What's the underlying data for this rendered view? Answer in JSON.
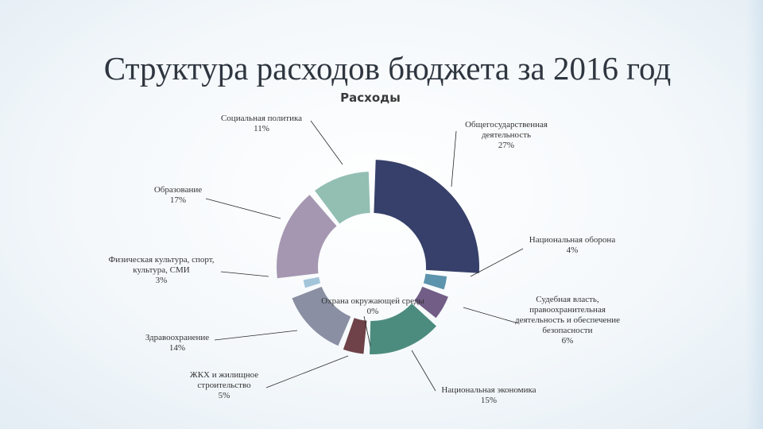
{
  "title": "Структура расходов бюджета за 2016 год",
  "chart_data": {
    "type": "donut",
    "title": "Расходы",
    "series": [
      {
        "label": "Общегосударственная деятельность",
        "value": 27,
        "value_label": "27%",
        "color": "#36406a"
      },
      {
        "label": "Национальная оборона",
        "value": 4,
        "value_label": "4%",
        "color": "#5c93ad"
      },
      {
        "label": "Судебная власть, правоохранительная деятельность и обеспечение безопасности",
        "value": 6,
        "value_label": "6%",
        "color": "#725d86"
      },
      {
        "label": "Национальная экономика",
        "value": 15,
        "value_label": "15%",
        "color": "#4c8c7e"
      },
      {
        "label": "Охрана окружающей среды",
        "value": 0,
        "value_label": "0%",
        "color": "#3e586e"
      },
      {
        "label": "ЖКХ и жилищное строительство",
        "value": 5,
        "value_label": "5%",
        "color": "#6e4248"
      },
      {
        "label": "Здравоохранение",
        "value": 14,
        "value_label": "14%",
        "color": "#8a8fa3"
      },
      {
        "label": "Физическая культура, спорт, культура, СМИ",
        "value": 3,
        "value_label": "3%",
        "color": "#a3c5da"
      },
      {
        "label": "Образование",
        "value": 17,
        "value_label": "17%",
        "color": "#a597b1"
      },
      {
        "label": "Социальная политика",
        "value": 11,
        "value_label": "11%",
        "color": "#93bfb3"
      }
    ]
  }
}
